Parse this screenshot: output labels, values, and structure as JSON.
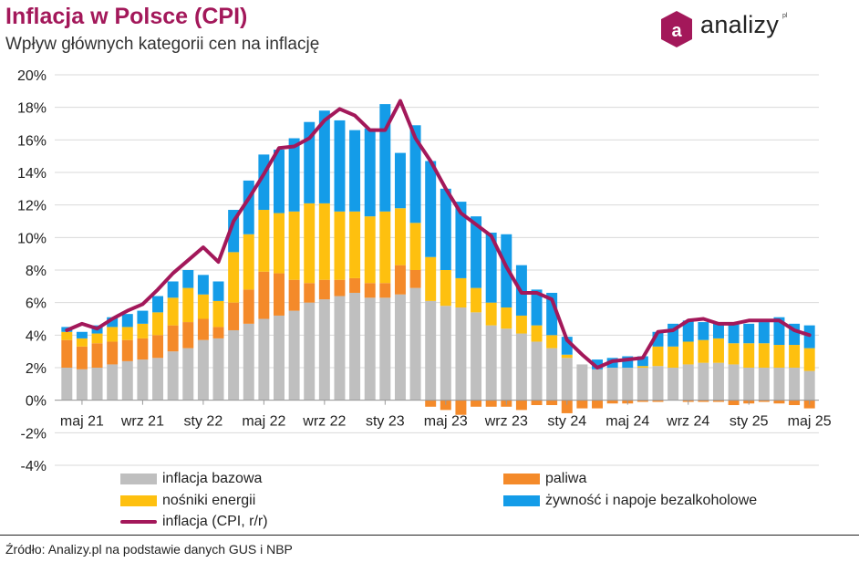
{
  "header": {
    "title": "Inflacja w Polsce (CPI)",
    "subtitle": "Wpływ głównych kategorii cen na inflację"
  },
  "brand": {
    "name": "analizy",
    "sup": "pl",
    "icon": "a-hexagon-logo",
    "color": "#a3185a"
  },
  "source": "Źródło: Analizy.pl na podstawie danych GUS i NBP",
  "colors": {
    "core": "#bfbfbf",
    "fuel": "#f48a2a",
    "energy": "#fec00f",
    "food": "#149ce8",
    "cpi": "#a3185a",
    "title": "#a3185a"
  },
  "chart_data": {
    "type": "bar",
    "stacked": true,
    "ylim": [
      -4,
      20
    ],
    "y_ticks": [
      "-4%",
      "-2%",
      "0%",
      "2%",
      "4%",
      "6%",
      "8%",
      "10%",
      "12%",
      "14%",
      "16%",
      "18%",
      "20%"
    ],
    "y_tick_values": [
      -4,
      -2,
      0,
      2,
      4,
      6,
      8,
      10,
      12,
      14,
      16,
      18,
      20
    ],
    "grid": "horizontal",
    "legend_position": "bottom",
    "x_tick_labels": [
      "maj 21",
      "wrz 21",
      "sty 22",
      "maj 22",
      "wrz 22",
      "sty 23",
      "maj 23",
      "wrz 23",
      "sty 24",
      "maj 24",
      "wrz 24",
      "sty 25",
      "maj 25"
    ],
    "x_tick_months": [
      "2021-05",
      "2021-09",
      "2022-01",
      "2022-05",
      "2022-09",
      "2023-01",
      "2023-05",
      "2023-09",
      "2024-01",
      "2024-05",
      "2024-09",
      "2025-01",
      "2025-05"
    ],
    "categories": [
      "2021-04",
      "2021-05",
      "2021-06",
      "2021-07",
      "2021-08",
      "2021-09",
      "2021-10",
      "2021-11",
      "2021-12",
      "2022-01",
      "2022-02",
      "2022-03",
      "2022-04",
      "2022-05",
      "2022-06",
      "2022-07",
      "2022-08",
      "2022-09",
      "2022-10",
      "2022-11",
      "2022-12",
      "2023-01",
      "2023-02",
      "2023-03",
      "2023-04",
      "2023-05",
      "2023-06",
      "2023-07",
      "2023-08",
      "2023-09",
      "2023-10",
      "2023-11",
      "2023-12",
      "2024-01",
      "2024-02",
      "2024-03",
      "2024-04",
      "2024-05",
      "2024-06",
      "2024-07",
      "2024-08",
      "2024-09",
      "2024-10",
      "2024-11",
      "2024-12",
      "2025-01",
      "2025-02",
      "2025-03",
      "2025-04",
      "2025-05"
    ],
    "series": [
      {
        "name": "inflacja bazowa",
        "key": "core",
        "kind": "bar",
        "values": [
          2.0,
          1.9,
          2.0,
          2.2,
          2.4,
          2.5,
          2.6,
          3.0,
          3.2,
          3.7,
          3.8,
          4.3,
          4.7,
          5.0,
          5.2,
          5.5,
          6.0,
          6.2,
          6.4,
          6.6,
          6.3,
          6.3,
          6.5,
          6.9,
          6.1,
          5.8,
          5.7,
          5.4,
          4.6,
          4.4,
          4.1,
          3.6,
          3.2,
          2.6,
          2.2,
          1.9,
          2.0,
          2.0,
          2.0,
          2.1,
          2.0,
          2.2,
          2.3,
          2.3,
          2.2,
          2.0,
          2.0,
          2.0,
          2.0,
          1.8
        ]
      },
      {
        "name": "paliwa",
        "key": "fuel",
        "kind": "bar",
        "values": [
          1.7,
          1.4,
          1.5,
          1.4,
          1.3,
          1.3,
          1.4,
          1.6,
          1.6,
          1.3,
          0.7,
          1.7,
          2.1,
          2.9,
          2.6,
          1.9,
          1.2,
          1.2,
          1.0,
          0.9,
          0.9,
          0.9,
          1.8,
          1.1,
          -0.4,
          -0.6,
          -0.9,
          -0.4,
          -0.4,
          -0.4,
          -0.6,
          -0.3,
          -0.3,
          -0.8,
          -0.5,
          -0.5,
          -0.2,
          -0.2,
          -0.1,
          -0.1,
          0.0,
          -0.1,
          -0.1,
          -0.1,
          -0.3,
          -0.2,
          -0.1,
          -0.2,
          -0.3,
          -0.5
        ]
      },
      {
        "name": "nośniki energii",
        "key": "energy",
        "kind": "bar",
        "values": [
          0.5,
          0.5,
          0.6,
          0.9,
          0.8,
          0.9,
          1.4,
          1.7,
          2.1,
          1.5,
          1.6,
          3.1,
          3.4,
          3.8,
          3.7,
          4.2,
          4.9,
          4.7,
          4.2,
          4.1,
          4.1,
          4.4,
          3.5,
          2.9,
          2.7,
          2.2,
          1.8,
          1.5,
          1.4,
          1.3,
          1.1,
          1.0,
          0.8,
          0.2,
          0.0,
          0.0,
          0.0,
          0.0,
          0.1,
          1.2,
          1.3,
          1.4,
          1.4,
          1.5,
          1.3,
          1.5,
          1.5,
          1.4,
          1.4,
          1.4
        ]
      },
      {
        "name": "żywność i napoje bezalkoholowe",
        "key": "food",
        "kind": "bar",
        "values": [
          0.3,
          0.4,
          0.5,
          0.6,
          0.8,
          0.8,
          1.0,
          1.0,
          1.1,
          1.2,
          1.2,
          2.6,
          3.3,
          3.4,
          3.9,
          4.5,
          5.0,
          5.7,
          5.6,
          5.0,
          5.4,
          6.6,
          3.4,
          6.0,
          5.9,
          5.0,
          4.7,
          4.4,
          4.3,
          4.5,
          3.1,
          2.2,
          2.6,
          1.1,
          0.0,
          0.6,
          0.6,
          0.7,
          0.6,
          0.9,
          1.4,
          1.3,
          1.1,
          1.0,
          1.3,
          1.2,
          1.3,
          1.7,
          1.3,
          1.4
        ]
      },
      {
        "name": "inflacja (CPI, r/r)",
        "key": "cpi",
        "kind": "line",
        "values": [
          4.3,
          4.7,
          4.4,
          5.0,
          5.5,
          5.9,
          6.8,
          7.8,
          8.6,
          9.4,
          8.5,
          11.0,
          12.4,
          13.9,
          15.5,
          15.6,
          16.1,
          17.2,
          17.9,
          17.5,
          16.6,
          16.6,
          18.4,
          16.1,
          14.7,
          13.0,
          11.5,
          10.8,
          10.1,
          8.2,
          6.6,
          6.6,
          6.2,
          3.7,
          2.8,
          2.0,
          2.4,
          2.5,
          2.6,
          4.2,
          4.3,
          4.9,
          5.0,
          4.7,
          4.7,
          4.9,
          4.9,
          4.9,
          4.3,
          4.0
        ]
      }
    ]
  }
}
